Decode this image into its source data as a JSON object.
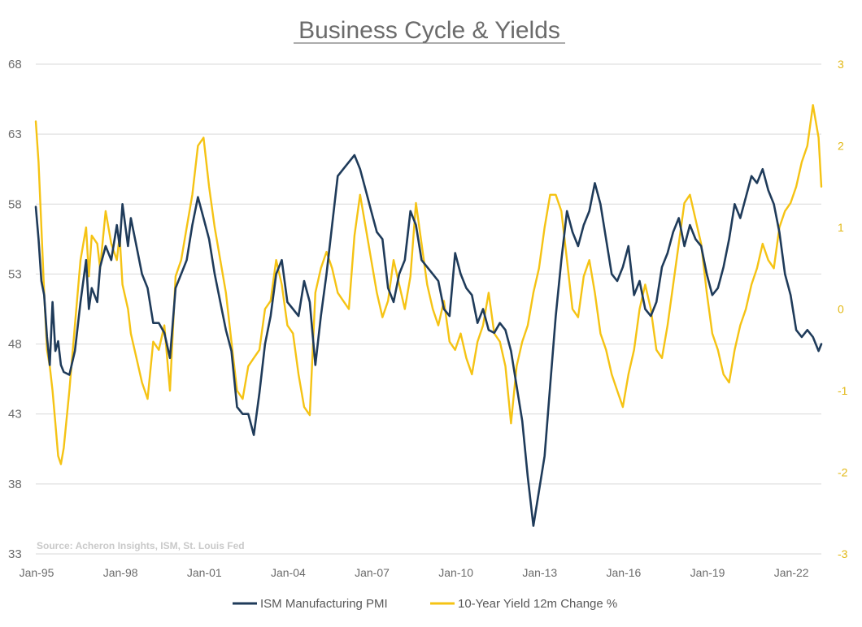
{
  "chart_data": {
    "type": "line",
    "title": "Business Cycle & Yields",
    "source": "Source: Acheron Insights, ISM, St. Louis Fed",
    "x_ticks": [
      "Jan-95",
      "Jan-98",
      "Jan-01",
      "Jan-04",
      "Jan-07",
      "Jan-10",
      "Jan-13",
      "Jan-16",
      "Jan-19",
      "Jan-22"
    ],
    "x_range": [
      1995.0,
      2023.1
    ],
    "left_axis": {
      "min": 33,
      "max": 68,
      "ticks": [
        "68",
        "63",
        "58",
        "53",
        "48",
        "43",
        "38",
        "33"
      ]
    },
    "right_axis": {
      "min": -3,
      "max": 3,
      "ticks": [
        "3",
        "2",
        "1",
        "0",
        "-1",
        "-2",
        "-3"
      ]
    },
    "grid": true,
    "legend_position": "bottom",
    "colors": {
      "pmi": "#1f3b5a",
      "yield": "#f5c314",
      "grid": "#d9d9d9"
    },
    "series": [
      {
        "name": "ISM Manufacturing PMI",
        "axis": "left",
        "color": "#1f3b5a",
        "points": [
          [
            1995.0,
            57.8
          ],
          [
            1995.1,
            55.5
          ],
          [
            1995.2,
            52.5
          ],
          [
            1995.3,
            51.5
          ],
          [
            1995.4,
            48.5
          ],
          [
            1995.5,
            46.5
          ],
          [
            1995.6,
            51.0
          ],
          [
            1995.7,
            47.5
          ],
          [
            1995.8,
            48.2
          ],
          [
            1995.9,
            46.5
          ],
          [
            1996.0,
            46.0
          ],
          [
            1996.2,
            45.8
          ],
          [
            1996.4,
            47.5
          ],
          [
            1996.6,
            51.0
          ],
          [
            1996.8,
            54.0
          ],
          [
            1996.9,
            50.5
          ],
          [
            1997.0,
            52.0
          ],
          [
            1997.2,
            51.0
          ],
          [
            1997.3,
            53.5
          ],
          [
            1997.5,
            55.0
          ],
          [
            1997.7,
            54.0
          ],
          [
            1997.9,
            56.5
          ],
          [
            1998.0,
            55.0
          ],
          [
            1998.1,
            58.0
          ],
          [
            1998.3,
            55.0
          ],
          [
            1998.4,
            57.0
          ],
          [
            1998.6,
            55.0
          ],
          [
            1998.8,
            53.0
          ],
          [
            1999.0,
            52.0
          ],
          [
            1999.2,
            49.5
          ],
          [
            1999.4,
            49.5
          ],
          [
            1999.6,
            48.8
          ],
          [
            1999.8,
            47.0
          ],
          [
            2000.0,
            52.0
          ],
          [
            2000.2,
            53.0
          ],
          [
            2000.4,
            54.0
          ],
          [
            2000.6,
            56.5
          ],
          [
            2000.8,
            58.5
          ],
          [
            2001.0,
            57.0
          ],
          [
            2001.2,
            55.5
          ],
          [
            2001.4,
            53.0
          ],
          [
            2001.6,
            51.0
          ],
          [
            2001.8,
            49.0
          ],
          [
            2002.0,
            47.5
          ],
          [
            2002.2,
            43.5
          ],
          [
            2002.4,
            43.0
          ],
          [
            2002.6,
            43.0
          ],
          [
            2002.8,
            41.5
          ],
          [
            2003.0,
            44.5
          ],
          [
            2003.2,
            48.0
          ],
          [
            2003.4,
            50.0
          ],
          [
            2003.6,
            53.0
          ],
          [
            2003.8,
            54.0
          ],
          [
            2004.0,
            51.0
          ],
          [
            2004.2,
            50.5
          ],
          [
            2004.4,
            50.0
          ],
          [
            2004.6,
            52.5
          ],
          [
            2004.8,
            51.0
          ],
          [
            2005.0,
            46.5
          ],
          [
            2005.2,
            50.0
          ],
          [
            2005.4,
            53.0
          ],
          [
            2005.6,
            56.5
          ],
          [
            2005.8,
            60.0
          ],
          [
            2006.0,
            60.5
          ],
          [
            2006.2,
            61.0
          ],
          [
            2006.4,
            61.5
          ],
          [
            2006.6,
            60.5
          ],
          [
            2006.8,
            59.0
          ],
          [
            2007.0,
            57.5
          ],
          [
            2007.2,
            56.0
          ],
          [
            2007.4,
            55.5
          ],
          [
            2007.6,
            52.0
          ],
          [
            2007.8,
            51.0
          ],
          [
            2008.0,
            53.0
          ],
          [
            2008.2,
            54.0
          ],
          [
            2008.4,
            57.5
          ],
          [
            2008.6,
            56.5
          ],
          [
            2008.8,
            54.0
          ],
          [
            2009.0,
            53.5
          ],
          [
            2009.2,
            53.0
          ],
          [
            2009.4,
            52.5
          ],
          [
            2009.6,
            50.5
          ],
          [
            2009.8,
            50.0
          ],
          [
            2010.0,
            54.5
          ],
          [
            2010.2,
            53.0
          ],
          [
            2010.4,
            52.0
          ],
          [
            2010.6,
            51.5
          ],
          [
            2010.8,
            49.5
          ],
          [
            2011.0,
            50.5
          ],
          [
            2011.2,
            49.0
          ],
          [
            2011.4,
            48.8
          ],
          [
            2011.6,
            49.5
          ],
          [
            2011.8,
            49.0
          ],
          [
            2012.0,
            47.5
          ],
          [
            2012.2,
            45.0
          ],
          [
            2012.4,
            42.5
          ],
          [
            2012.6,
            38.5
          ],
          [
            2012.8,
            35.0
          ],
          [
            2013.0,
            37.5
          ],
          [
            2013.2,
            40.0
          ],
          [
            2013.4,
            45.0
          ],
          [
            2013.6,
            50.0
          ],
          [
            2013.8,
            54.0
          ],
          [
            2014.0,
            57.5
          ],
          [
            2014.2,
            56.0
          ],
          [
            2014.4,
            55.0
          ],
          [
            2014.6,
            56.5
          ],
          [
            2014.8,
            57.5
          ],
          [
            2015.0,
            59.5
          ],
          [
            2015.2,
            58.0
          ],
          [
            2015.4,
            55.5
          ],
          [
            2015.6,
            53.0
          ],
          [
            2015.8,
            52.5
          ],
          [
            2016.0,
            53.5
          ],
          [
            2016.2,
            55.0
          ],
          [
            2016.4,
            51.5
          ],
          [
            2016.6,
            52.5
          ],
          [
            2016.8,
            50.5
          ],
          [
            2017.0,
            50.0
          ],
          [
            2017.2,
            51.0
          ],
          [
            2017.4,
            53.5
          ],
          [
            2017.6,
            54.5
          ],
          [
            2017.8,
            56.0
          ],
          [
            2018.0,
            57.0
          ],
          [
            2018.2,
            55.0
          ],
          [
            2018.4,
            56.5
          ],
          [
            2018.6,
            55.5
          ],
          [
            2018.8,
            55.0
          ],
          [
            2019.0,
            53.0
          ],
          [
            2019.2,
            51.5
          ],
          [
            2019.4,
            52.0
          ],
          [
            2019.6,
            53.5
          ],
          [
            2019.8,
            55.5
          ],
          [
            2020.0,
            58.0
          ],
          [
            2020.2,
            57.0
          ],
          [
            2020.4,
            58.5
          ],
          [
            2020.6,
            60.0
          ],
          [
            2020.8,
            59.5
          ],
          [
            2021.0,
            60.5
          ],
          [
            2021.2,
            59.0
          ],
          [
            2021.4,
            58.0
          ],
          [
            2021.6,
            56.0
          ],
          [
            2021.8,
            53.0
          ],
          [
            2022.0,
            51.5
          ],
          [
            2022.2,
            49.0
          ],
          [
            2022.4,
            48.5
          ],
          [
            2022.6,
            49.0
          ],
          [
            2022.8,
            48.5
          ],
          [
            2023.0,
            47.5
          ],
          [
            2023.1,
            48.0
          ]
        ]
      },
      {
        "name": "10-Year Yield 12m Change %",
        "axis": "right",
        "color": "#f5c314",
        "points": [
          [
            1995.0,
            2.3
          ],
          [
            1995.1,
            1.8
          ],
          [
            1995.2,
            1.0
          ],
          [
            1995.3,
            0.2
          ],
          [
            1995.4,
            -0.5
          ],
          [
            1995.5,
            -0.7
          ],
          [
            1995.6,
            -1.0
          ],
          [
            1995.7,
            -1.4
          ],
          [
            1995.8,
            -1.8
          ],
          [
            1995.9,
            -1.9
          ],
          [
            1996.0,
            -1.7
          ],
          [
            1996.2,
            -1.0
          ],
          [
            1996.4,
            -0.2
          ],
          [
            1996.6,
            0.6
          ],
          [
            1996.8,
            1.0
          ],
          [
            1996.9,
            0.4
          ],
          [
            1997.0,
            0.9
          ],
          [
            1997.2,
            0.8
          ],
          [
            1997.3,
            0.5
          ],
          [
            1997.5,
            1.2
          ],
          [
            1997.7,
            0.8
          ],
          [
            1997.9,
            0.6
          ],
          [
            1998.0,
            0.9
          ],
          [
            1998.1,
            0.3
          ],
          [
            1998.3,
            0.0
          ],
          [
            1998.4,
            -0.3
          ],
          [
            1998.6,
            -0.6
          ],
          [
            1998.8,
            -0.9
          ],
          [
            1999.0,
            -1.1
          ],
          [
            1999.2,
            -0.4
          ],
          [
            1999.4,
            -0.5
          ],
          [
            1999.6,
            -0.2
          ],
          [
            1999.8,
            -1.0
          ],
          [
            2000.0,
            0.4
          ],
          [
            2000.2,
            0.6
          ],
          [
            2000.4,
            1.0
          ],
          [
            2000.6,
            1.4
          ],
          [
            2000.8,
            2.0
          ],
          [
            2001.0,
            2.1
          ],
          [
            2001.2,
            1.5
          ],
          [
            2001.4,
            1.0
          ],
          [
            2001.6,
            0.6
          ],
          [
            2001.8,
            0.2
          ],
          [
            2002.0,
            -0.4
          ],
          [
            2002.2,
            -1.0
          ],
          [
            2002.4,
            -1.1
          ],
          [
            2002.6,
            -0.7
          ],
          [
            2002.8,
            -0.6
          ],
          [
            2003.0,
            -0.5
          ],
          [
            2003.2,
            0.0
          ],
          [
            2003.4,
            0.1
          ],
          [
            2003.6,
            0.6
          ],
          [
            2003.8,
            0.3
          ],
          [
            2004.0,
            -0.2
          ],
          [
            2004.2,
            -0.3
          ],
          [
            2004.4,
            -0.8
          ],
          [
            2004.6,
            -1.2
          ],
          [
            2004.8,
            -1.3
          ],
          [
            2005.0,
            0.2
          ],
          [
            2005.2,
            0.5
          ],
          [
            2005.4,
            0.7
          ],
          [
            2005.6,
            0.5
          ],
          [
            2005.8,
            0.2
          ],
          [
            2006.0,
            0.1
          ],
          [
            2006.2,
            0.0
          ],
          [
            2006.4,
            0.9
          ],
          [
            2006.6,
            1.4
          ],
          [
            2006.8,
            1.0
          ],
          [
            2007.0,
            0.6
          ],
          [
            2007.2,
            0.2
          ],
          [
            2007.4,
            -0.1
          ],
          [
            2007.6,
            0.1
          ],
          [
            2007.8,
            0.6
          ],
          [
            2008.0,
            0.3
          ],
          [
            2008.2,
            0.0
          ],
          [
            2008.4,
            0.4
          ],
          [
            2008.6,
            1.3
          ],
          [
            2008.8,
            0.8
          ],
          [
            2009.0,
            0.3
          ],
          [
            2009.2,
            0.0
          ],
          [
            2009.4,
            -0.2
          ],
          [
            2009.6,
            0.1
          ],
          [
            2009.8,
            -0.4
          ],
          [
            2010.0,
            -0.5
          ],
          [
            2010.2,
            -0.3
          ],
          [
            2010.4,
            -0.6
          ],
          [
            2010.6,
            -0.8
          ],
          [
            2010.8,
            -0.4
          ],
          [
            2011.0,
            -0.2
          ],
          [
            2011.2,
            0.2
          ],
          [
            2011.4,
            -0.3
          ],
          [
            2011.6,
            -0.4
          ],
          [
            2011.8,
            -0.7
          ],
          [
            2012.0,
            -1.4
          ],
          [
            2012.2,
            -0.7
          ],
          [
            2012.4,
            -0.4
          ],
          [
            2012.6,
            -0.2
          ],
          [
            2012.8,
            0.2
          ],
          [
            2013.0,
            0.5
          ],
          [
            2013.2,
            1.0
          ],
          [
            2013.4,
            1.4
          ],
          [
            2013.6,
            1.4
          ],
          [
            2013.8,
            1.2
          ],
          [
            2014.0,
            0.6
          ],
          [
            2014.2,
            0.0
          ],
          [
            2014.4,
            -0.1
          ],
          [
            2014.6,
            0.4
          ],
          [
            2014.8,
            0.6
          ],
          [
            2015.0,
            0.2
          ],
          [
            2015.2,
            -0.3
          ],
          [
            2015.4,
            -0.5
          ],
          [
            2015.6,
            -0.8
          ],
          [
            2015.8,
            -1.0
          ],
          [
            2016.0,
            -1.2
          ],
          [
            2016.2,
            -0.8
          ],
          [
            2016.4,
            -0.5
          ],
          [
            2016.6,
            0.0
          ],
          [
            2016.8,
            0.3
          ],
          [
            2017.0,
            0.0
          ],
          [
            2017.2,
            -0.5
          ],
          [
            2017.4,
            -0.6
          ],
          [
            2017.6,
            -0.2
          ],
          [
            2017.8,
            0.3
          ],
          [
            2018.0,
            0.8
          ],
          [
            2018.2,
            1.3
          ],
          [
            2018.4,
            1.4
          ],
          [
            2018.6,
            1.1
          ],
          [
            2018.8,
            0.8
          ],
          [
            2019.0,
            0.2
          ],
          [
            2019.2,
            -0.3
          ],
          [
            2019.4,
            -0.5
          ],
          [
            2019.6,
            -0.8
          ],
          [
            2019.8,
            -0.9
          ],
          [
            2020.0,
            -0.5
          ],
          [
            2020.2,
            -0.2
          ],
          [
            2020.4,
            0.0
          ],
          [
            2020.6,
            0.3
          ],
          [
            2020.8,
            0.5
          ],
          [
            2021.0,
            0.8
          ],
          [
            2021.2,
            0.6
          ],
          [
            2021.4,
            0.5
          ],
          [
            2021.6,
            1.0
          ],
          [
            2021.8,
            1.2
          ],
          [
            2022.0,
            1.3
          ],
          [
            2022.2,
            1.5
          ],
          [
            2022.4,
            1.8
          ],
          [
            2022.6,
            2.0
          ],
          [
            2022.8,
            2.5
          ],
          [
            2023.0,
            2.1
          ],
          [
            2023.1,
            1.5
          ]
        ]
      }
    ]
  }
}
